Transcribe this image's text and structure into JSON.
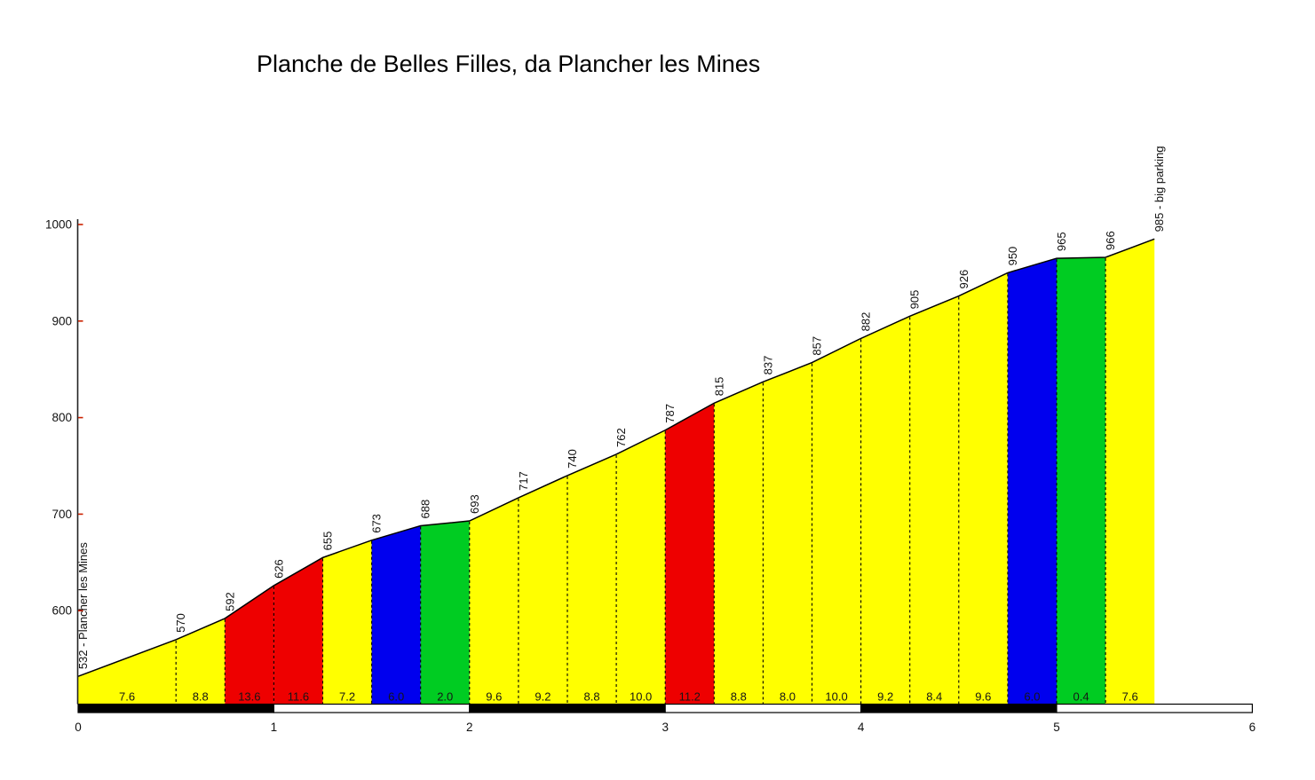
{
  "title": "Planche de Belles Filles, da Plancher les Mines",
  "chart_data": {
    "type": "area",
    "title": "Planche de Belles Filles, da Plancher les Mines",
    "x_unit": "km",
    "x_range": [
      0,
      6
    ],
    "x_ticks": [
      "0",
      "1",
      "2",
      "3",
      "4",
      "5",
      "6"
    ],
    "y_range": [
      500,
      1010
    ],
    "y_ticks": [
      "600",
      "700",
      "800",
      "900",
      "1000"
    ],
    "y_tick_color": "#CC2200",
    "grid": false,
    "legend": false,
    "start_label": "532 - Plancher les Mines",
    "end_label": "985 - big parking",
    "profile_points": [
      [
        0,
        532
      ],
      [
        0.5,
        570
      ],
      [
        0.75,
        592
      ],
      [
        1,
        626
      ],
      [
        1.25,
        655
      ],
      [
        1.5,
        673
      ],
      [
        1.75,
        688
      ],
      [
        2,
        693
      ],
      [
        2.25,
        717
      ],
      [
        2.5,
        740
      ],
      [
        2.75,
        762
      ],
      [
        3,
        787
      ],
      [
        3.25,
        815
      ],
      [
        3.5,
        837
      ],
      [
        3.75,
        857
      ],
      [
        4,
        882
      ],
      [
        4.25,
        905
      ],
      [
        4.5,
        926
      ],
      [
        4.75,
        950
      ],
      [
        5,
        965
      ],
      [
        5.25,
        966
      ],
      [
        5.5,
        985
      ]
    ],
    "segments": [
      {
        "from_km": 0,
        "to_km": 0.5,
        "grade_pct": "7.6",
        "color": "yellow"
      },
      {
        "from_km": 0.5,
        "to_km": 0.75,
        "grade_pct": "8.8",
        "color": "yellow"
      },
      {
        "from_km": 0.75,
        "to_km": 1,
        "grade_pct": "13.6",
        "color": "red"
      },
      {
        "from_km": 1,
        "to_km": 1.25,
        "grade_pct": "11.6",
        "color": "red"
      },
      {
        "from_km": 1.25,
        "to_km": 1.5,
        "grade_pct": "7.2",
        "color": "yellow"
      },
      {
        "from_km": 1.5,
        "to_km": 1.75,
        "grade_pct": "6.0",
        "color": "blue"
      },
      {
        "from_km": 1.75,
        "to_km": 2,
        "grade_pct": "2.0",
        "color": "green"
      },
      {
        "from_km": 2,
        "to_km": 2.25,
        "grade_pct": "9.6",
        "color": "yellow"
      },
      {
        "from_km": 2.25,
        "to_km": 2.5,
        "grade_pct": "9.2",
        "color": "yellow"
      },
      {
        "from_km": 2.5,
        "to_km": 2.75,
        "grade_pct": "8.8",
        "color": "yellow"
      },
      {
        "from_km": 2.75,
        "to_km": 3,
        "grade_pct": "10.0",
        "color": "yellow"
      },
      {
        "from_km": 3,
        "to_km": 3.25,
        "grade_pct": "11.2",
        "color": "red"
      },
      {
        "from_km": 3.25,
        "to_km": 3.5,
        "grade_pct": "8.8",
        "color": "yellow"
      },
      {
        "from_km": 3.5,
        "to_km": 3.75,
        "grade_pct": "8.0",
        "color": "yellow"
      },
      {
        "from_km": 3.75,
        "to_km": 4,
        "grade_pct": "10.0",
        "color": "yellow"
      },
      {
        "from_km": 4,
        "to_km": 4.25,
        "grade_pct": "9.2",
        "color": "yellow"
      },
      {
        "from_km": 4.25,
        "to_km": 4.5,
        "grade_pct": "8.4",
        "color": "yellow"
      },
      {
        "from_km": 4.5,
        "to_km": 4.75,
        "grade_pct": "9.6",
        "color": "yellow"
      },
      {
        "from_km": 4.75,
        "to_km": 5,
        "grade_pct": "6.0",
        "color": "blue"
      },
      {
        "from_km": 5,
        "to_km": 5.25,
        "grade_pct": "0.4",
        "color": "green"
      },
      {
        "from_km": 5.25,
        "to_km": 5.5,
        "grade_pct": "7.6",
        "color": "yellow"
      }
    ],
    "grade_colors": {
      "yellow": "#FFFF00",
      "red": "#EE0000",
      "blue": "#0000EE",
      "green": "#00CC22"
    },
    "km_bar": {
      "fill_pattern": [
        "black",
        "white",
        "black",
        "white",
        "black",
        "white"
      ],
      "border": "#000000"
    }
  }
}
